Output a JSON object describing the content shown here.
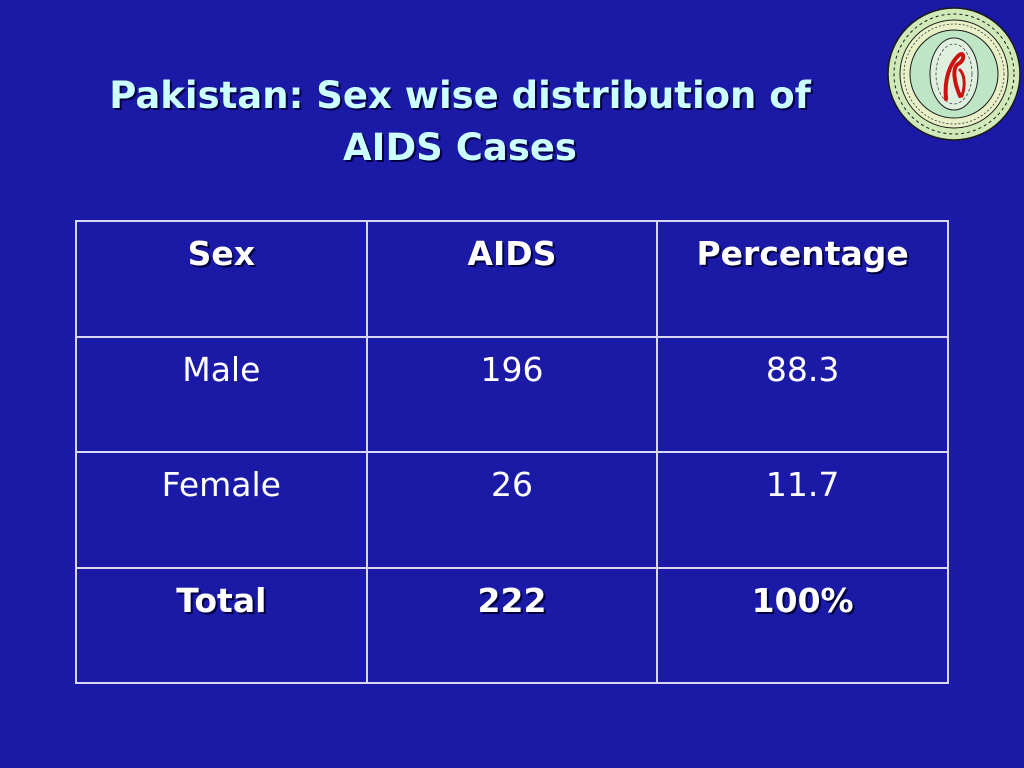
{
  "slide": {
    "title_line1": "Pakistan: Sex wise distribution of",
    "title_line2": "AIDS Cases",
    "background_color": "#1a1aa6",
    "title_color": "#ccffff",
    "logo_icon": "university-seal-icon"
  },
  "table": {
    "headers": [
      "Sex",
      "AIDS",
      "Percentage"
    ],
    "rows": [
      [
        "Male",
        "196",
        "88.3"
      ],
      [
        "Female",
        "26",
        "11.7"
      ]
    ],
    "total_row": [
      "Total",
      "222",
      "100%"
    ]
  }
}
